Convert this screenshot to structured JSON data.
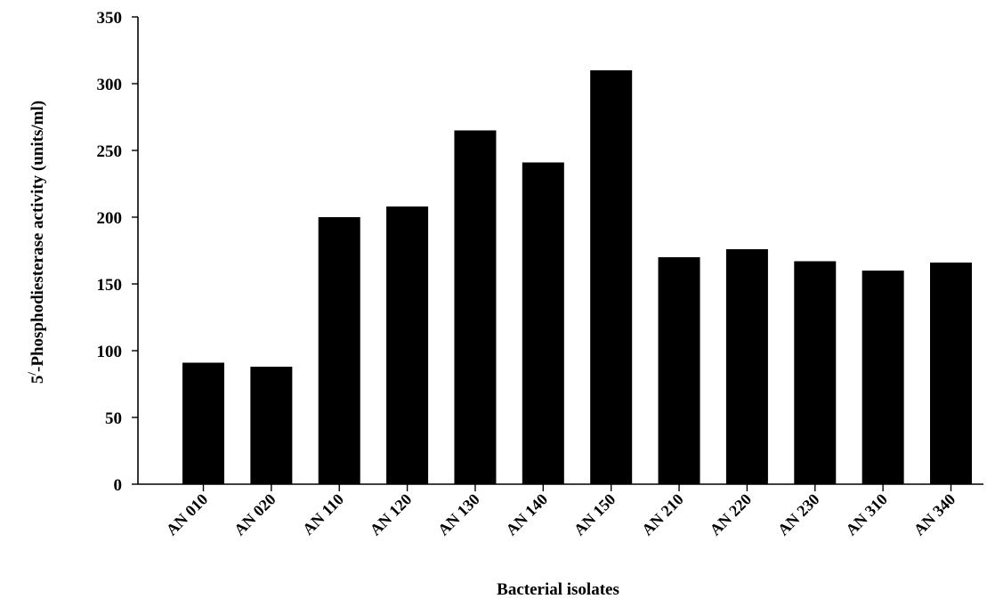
{
  "chart_data": {
    "type": "bar",
    "categories": [
      "AN 010",
      "AN 020",
      "AN 110",
      "AN 120",
      "AN 130",
      "AN 140",
      "AN 150",
      "AN 210",
      "AN 220",
      "AN 230",
      "AN 310",
      "AN 340"
    ],
    "values": [
      91,
      88,
      200,
      208,
      265,
      241,
      310,
      170,
      176,
      167,
      160,
      166
    ],
    "title": "",
    "xlabel": "Bacterial isolates",
    "ylabel_prefix": "5",
    "ylabel_superscript": "/",
    "ylabel_main": "-Phosphodiesterase activity (units/ml)",
    "ylim": [
      0,
      350
    ],
    "yticks": [
      0,
      50,
      100,
      150,
      200,
      250,
      300,
      350
    ],
    "ytick_labels": [
      "0",
      "50",
      "100",
      "150",
      "200",
      "250",
      "300",
      "350"
    ],
    "grid": false,
    "legend": "none",
    "bar_color": "#000000"
  }
}
